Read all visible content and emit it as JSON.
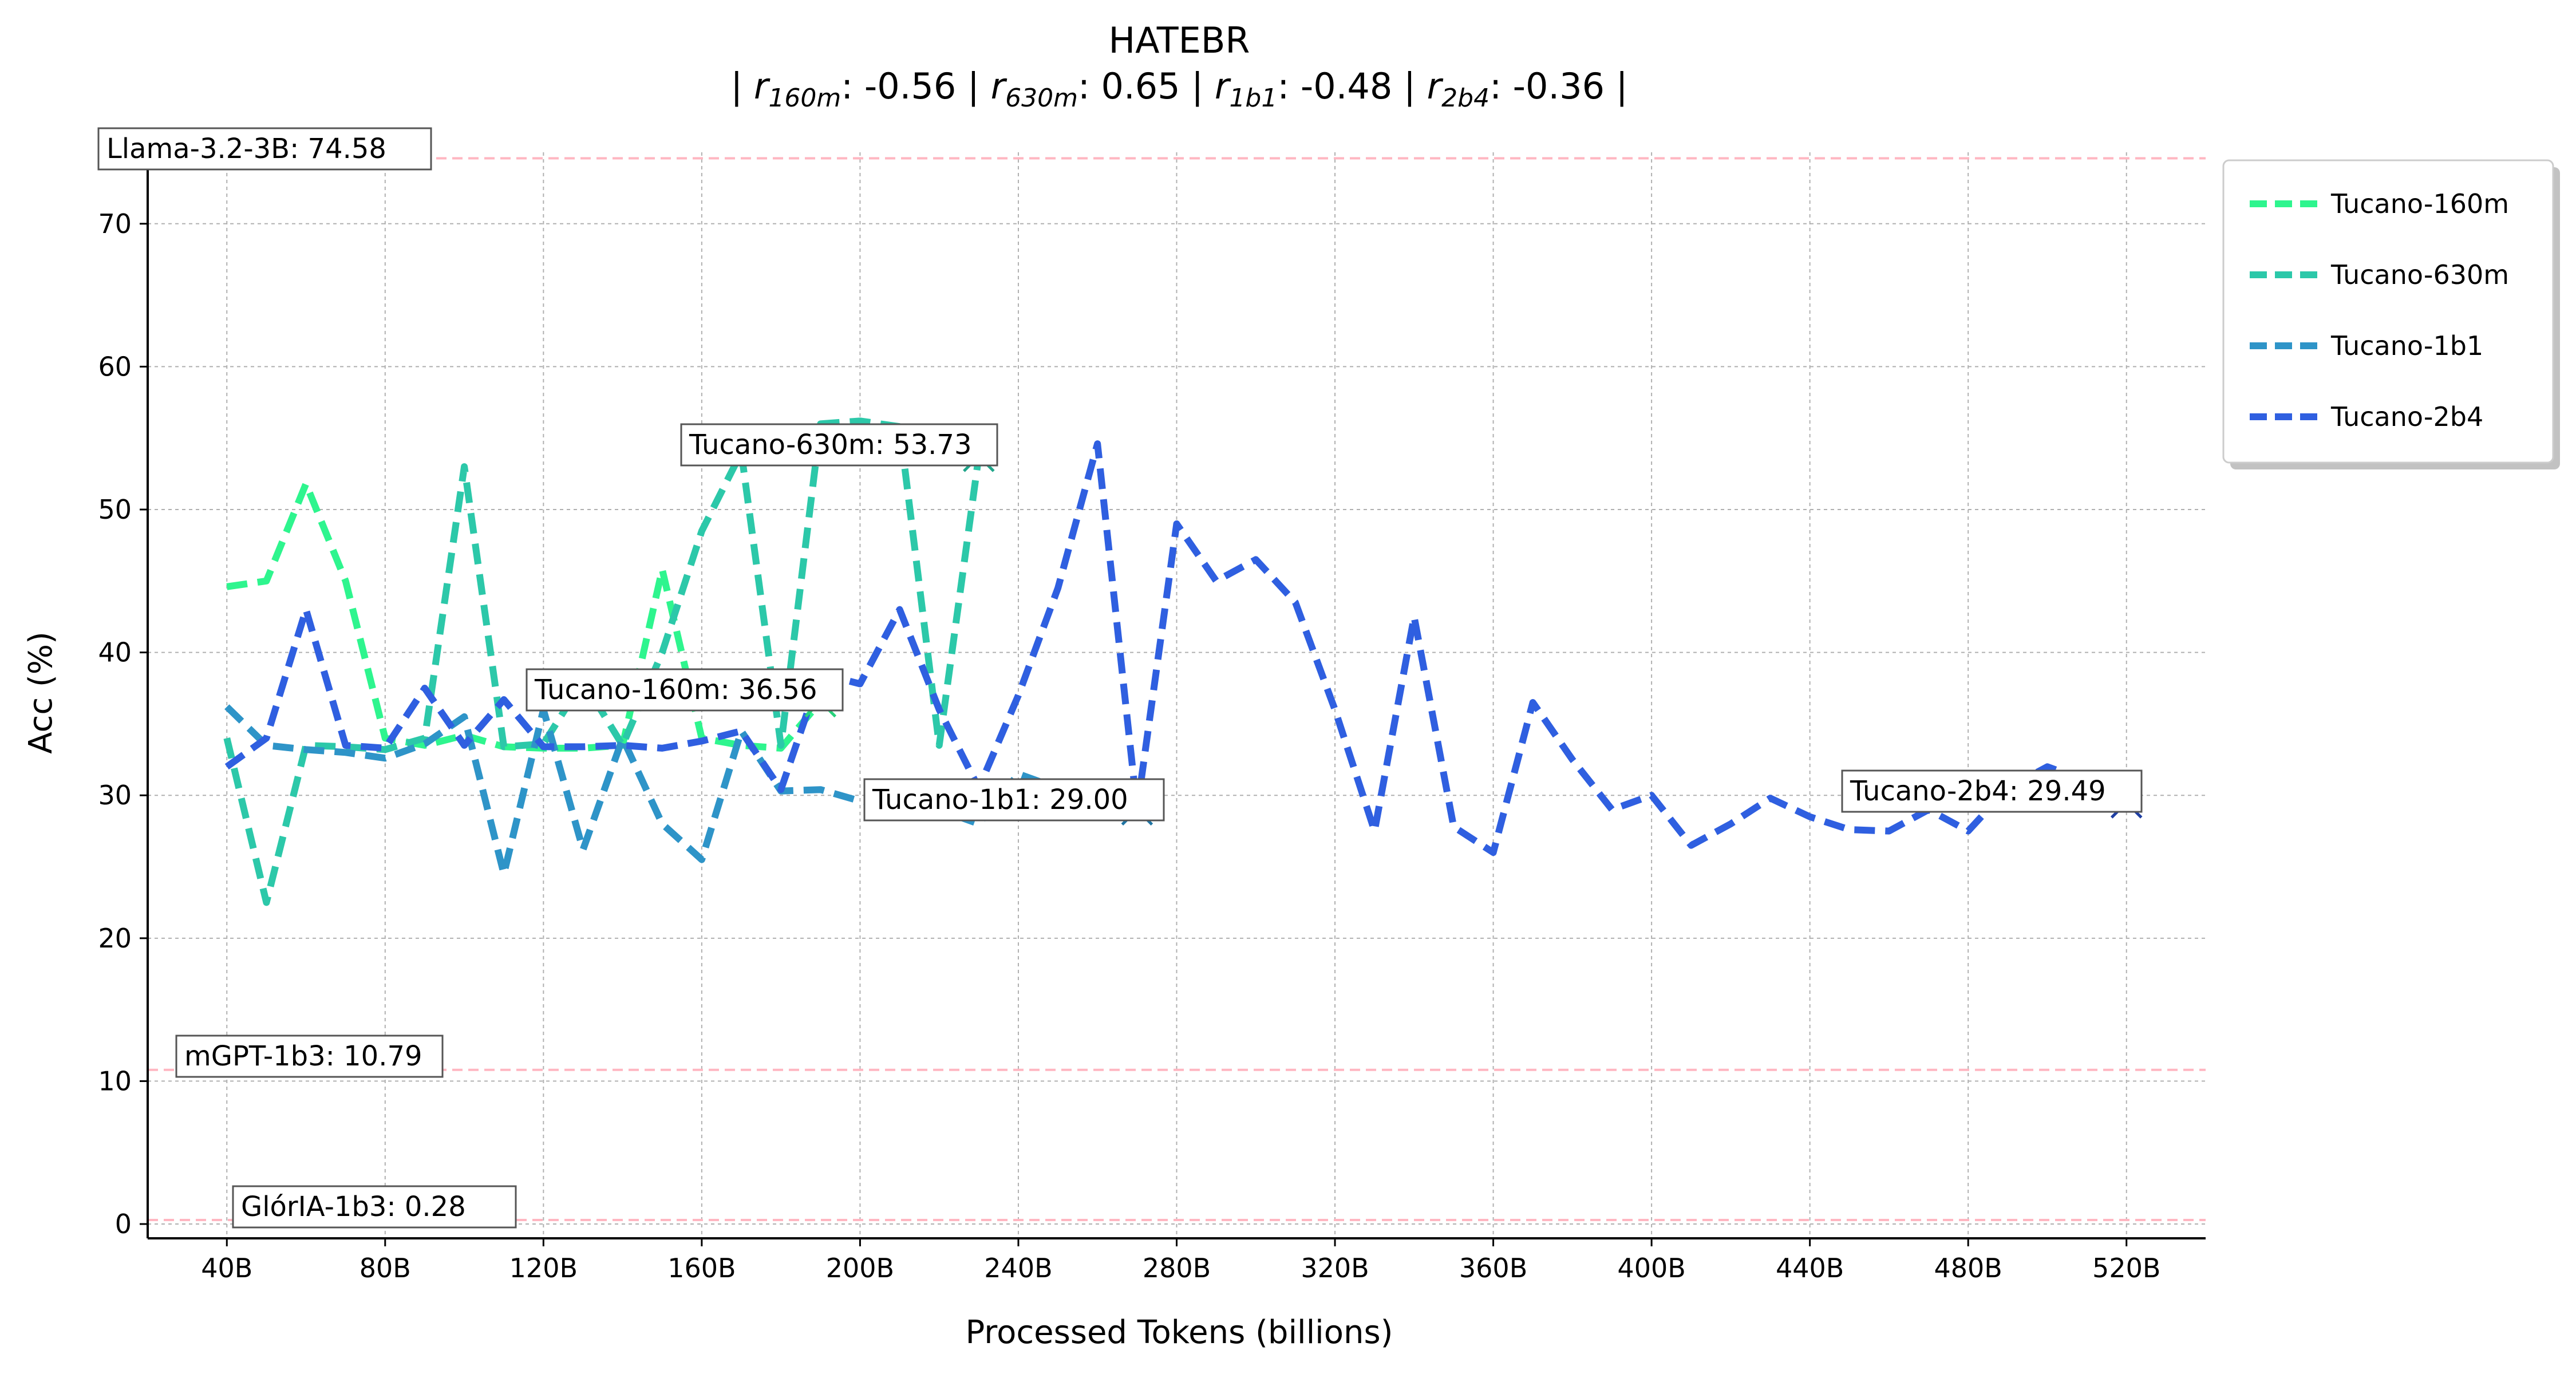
{
  "chart_data": {
    "type": "line",
    "title": "HATEBR",
    "subtitle": {
      "segments": [
        {
          "t": "| "
        },
        {
          "t": "r",
          "i": true
        },
        {
          "t": "160m",
          "sub": true,
          "i": true
        },
        {
          "t": ": -0.56 | "
        },
        {
          "t": "r",
          "i": true
        },
        {
          "t": "630m",
          "sub": true,
          "i": true
        },
        {
          "t": ": 0.65 | "
        },
        {
          "t": "r",
          "i": true
        },
        {
          "t": "1b1",
          "sub": true,
          "i": true
        },
        {
          "t": ": -0.48 | "
        },
        {
          "t": "r",
          "i": true
        },
        {
          "t": "2b4",
          "sub": true,
          "i": true
        },
        {
          "t": ": -0.36 |"
        }
      ]
    },
    "xlabel": "Processed Tokens (billions)",
    "ylabel": "Acc (%)",
    "xlim": [
      20,
      540
    ],
    "ylim": [
      -1,
      75
    ],
    "xticks": [
      40,
      80,
      120,
      160,
      200,
      240,
      280,
      320,
      360,
      400,
      440,
      480,
      520
    ],
    "xtick_labels": [
      "40B",
      "80B",
      "120B",
      "160B",
      "200B",
      "240B",
      "280B",
      "320B",
      "360B",
      "400B",
      "440B",
      "480B",
      "520B"
    ],
    "yticks": [
      0,
      10,
      20,
      30,
      40,
      50,
      60,
      70
    ],
    "ytick_labels": [
      "0",
      "10",
      "20",
      "30",
      "40",
      "50",
      "60",
      "70"
    ],
    "grid": true,
    "legend_position": "outside-top-right",
    "baselines": [
      {
        "label": "Llama-3.2-3B: 74.58",
        "value": 74.58,
        "color": "#ffb6c1"
      },
      {
        "label": "mGPT-1b3: 10.79",
        "value": 10.79,
        "color": "#ffb6c1"
      },
      {
        "label": "GlórIA-1b3: 0.28",
        "value": 0.28,
        "color": "#ffb6c1"
      }
    ],
    "series": [
      {
        "name": "Tucano-160m",
        "color": "#2ef58e",
        "marker_color": "#27d17a",
        "x": [
          40,
          50,
          60,
          70,
          80,
          90,
          100,
          110,
          120,
          130,
          140,
          150,
          160,
          170,
          180,
          190
        ],
        "y": [
          44.6,
          45.0,
          51.8,
          45.0,
          34.0,
          33.5,
          34.2,
          33.4,
          33.3,
          33.3,
          33.5,
          45.8,
          34.0,
          33.5,
          33.3,
          36.56
        ],
        "final": {
          "x": 190,
          "y": 36.56,
          "label": "Tucano-160m: 36.56"
        }
      },
      {
        "name": "Tucano-630m",
        "color": "#2cc8a9",
        "marker_color": "#1fa58a",
        "x": [
          40,
          50,
          60,
          70,
          80,
          90,
          100,
          110,
          120,
          130,
          140,
          150,
          160,
          170,
          180,
          190,
          200,
          210,
          220,
          230
        ],
        "y": [
          34.0,
          22.5,
          33.5,
          33.4,
          33.2,
          34.0,
          53.0,
          33.4,
          33.6,
          38.0,
          33.5,
          40.0,
          48.5,
          54.0,
          33.5,
          56.0,
          56.2,
          55.8,
          33.5,
          53.73
        ],
        "final": {
          "x": 230,
          "y": 53.73,
          "label": "Tucano-630m: 53.73"
        }
      },
      {
        "name": "Tucano-1b1",
        "color": "#2e94c8",
        "marker_color": "#1f74a3",
        "x": [
          40,
          50,
          60,
          70,
          80,
          90,
          100,
          110,
          120,
          130,
          140,
          150,
          160,
          170,
          180,
          190,
          200,
          210,
          220,
          230,
          240,
          250,
          260,
          270
        ],
        "y": [
          36.2,
          33.5,
          33.2,
          33.0,
          32.6,
          33.6,
          35.5,
          24.5,
          36.0,
          26.2,
          34.0,
          28.0,
          25.5,
          34.5,
          30.3,
          30.4,
          29.6,
          29.3,
          29.0,
          28.0,
          31.5,
          30.5,
          30.0,
          29.0
        ],
        "final": {
          "x": 270,
          "y": 29.0,
          "label": "Tucano-1b1: 29.00"
        }
      },
      {
        "name": "Tucano-2b4",
        "color": "#2f5fe0",
        "marker_color": "#1f3fa3",
        "x": [
          40,
          50,
          60,
          70,
          80,
          90,
          100,
          110,
          120,
          130,
          140,
          150,
          160,
          170,
          180,
          190,
          200,
          210,
          220,
          230,
          240,
          250,
          260,
          270,
          280,
          290,
          300,
          310,
          320,
          330,
          340,
          350,
          360,
          370,
          380,
          390,
          400,
          410,
          420,
          430,
          440,
          450,
          460,
          470,
          480,
          490,
          500,
          510,
          520
        ],
        "y": [
          32.0,
          34.0,
          43.0,
          33.5,
          33.3,
          37.5,
          33.5,
          36.7,
          33.4,
          33.4,
          33.5,
          33.3,
          33.8,
          34.5,
          30.4,
          38.5,
          37.8,
          43.0,
          36.0,
          30.5,
          37.0,
          44.5,
          54.6,
          29.0,
          49.0,
          45.0,
          46.5,
          43.5,
          36.0,
          27.5,
          42.5,
          27.8,
          26.0,
          36.5,
          32.5,
          29.0,
          30.0,
          26.5,
          28.0,
          29.8,
          28.5,
          27.6,
          27.5,
          29.0,
          27.5,
          30.5,
          32.0,
          31.0,
          29.49
        ],
        "final": {
          "x": 520,
          "y": 29.49,
          "label": "Tucano-2b4: 29.49"
        }
      }
    ]
  }
}
